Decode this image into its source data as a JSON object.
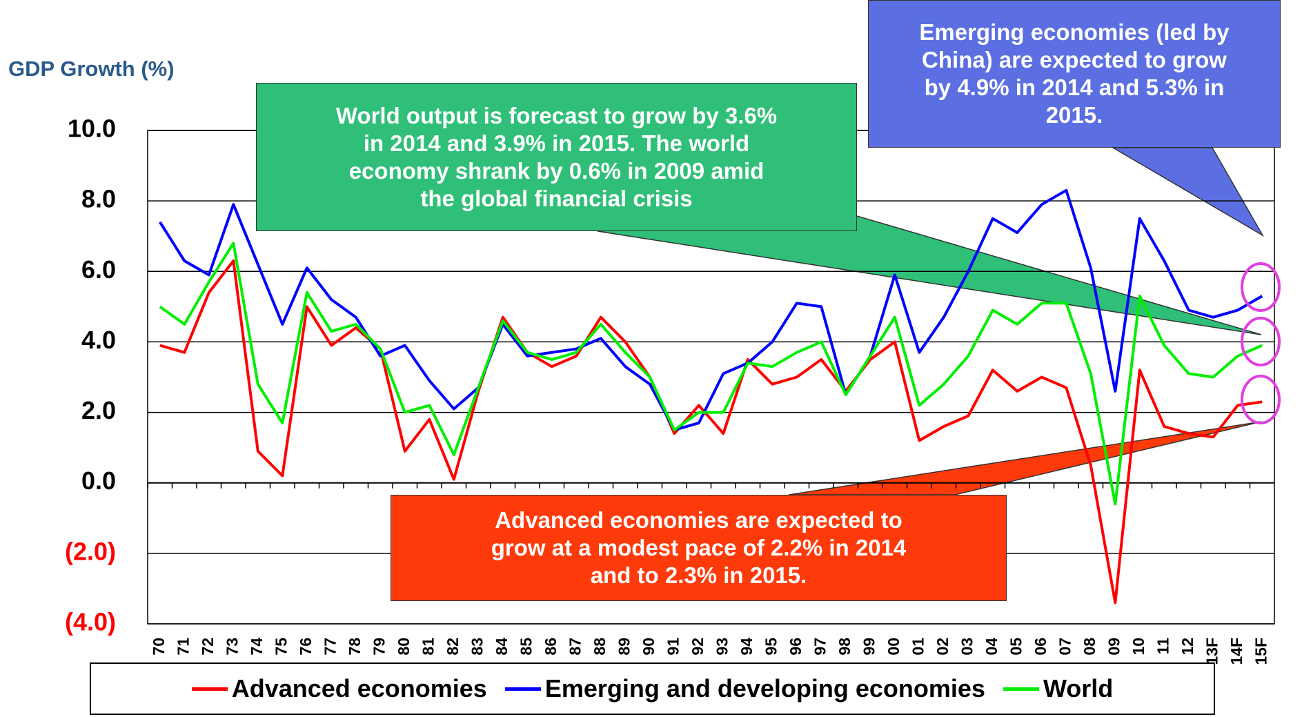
{
  "chart_data": {
    "type": "line",
    "y_axis_label": "GDP Growth (%)",
    "categories": [
      "70",
      "71",
      "72",
      "73",
      "74",
      "75",
      "76",
      "77",
      "78",
      "79",
      "80",
      "81",
      "82",
      "83",
      "84",
      "85",
      "86",
      "87",
      "88",
      "89",
      "90",
      "91",
      "92",
      "93",
      "94",
      "95",
      "96",
      "97",
      "98",
      "99",
      "00",
      "01",
      "02",
      "03",
      "04",
      "05",
      "06",
      "07",
      "08",
      "09",
      "10",
      "11",
      "12",
      "13F",
      "14F",
      "15F"
    ],
    "series": [
      {
        "name": "Advanced economies",
        "color": "#ff0000",
        "values": [
          3.9,
          3.7,
          5.4,
          6.3,
          0.9,
          0.2,
          5.0,
          3.9,
          4.4,
          3.8,
          0.9,
          1.8,
          0.1,
          2.6,
          4.7,
          3.7,
          3.3,
          3.6,
          4.7,
          4.0,
          3.0,
          1.4,
          2.2,
          1.4,
          3.5,
          2.8,
          3.0,
          3.5,
          2.6,
          3.5,
          4.0,
          1.2,
          1.6,
          1.9,
          3.2,
          2.6,
          3.0,
          2.7,
          0.5,
          -3.4,
          3.2,
          1.6,
          1.4,
          1.3,
          2.2,
          2.3
        ]
      },
      {
        "name": "Emerging and developing economies",
        "color": "#0000ff",
        "values": [
          7.4,
          6.3,
          5.9,
          7.9,
          6.2,
          4.5,
          6.1,
          5.2,
          4.7,
          3.6,
          3.9,
          2.9,
          2.1,
          2.7,
          4.5,
          3.6,
          3.7,
          3.8,
          4.1,
          3.3,
          2.8,
          1.5,
          1.7,
          3.1,
          3.4,
          4.0,
          5.1,
          5.0,
          2.5,
          3.6,
          5.9,
          3.7,
          4.7,
          6.0,
          7.5,
          7.1,
          7.9,
          8.3,
          6.1,
          2.6,
          7.5,
          6.3,
          4.9,
          4.7,
          4.9,
          5.3
        ]
      },
      {
        "name": "World",
        "color": "#00ee00",
        "values": [
          5.0,
          4.5,
          5.7,
          6.8,
          2.8,
          1.7,
          5.4,
          4.3,
          4.5,
          3.8,
          2.0,
          2.2,
          0.8,
          2.7,
          4.6,
          3.7,
          3.5,
          3.7,
          4.5,
          3.7,
          3.0,
          1.5,
          2.0,
          2.0,
          3.4,
          3.3,
          3.7,
          4.0,
          2.5,
          3.6,
          4.7,
          2.2,
          2.8,
          3.6,
          4.9,
          4.5,
          5.1,
          5.1,
          3.1,
          -0.6,
          5.3,
          3.9,
          3.1,
          3.0,
          3.6,
          3.9
        ]
      }
    ],
    "ylim": [
      -4,
      10
    ],
    "yticks": [
      {
        "value": -4,
        "label": "(4.0)"
      },
      {
        "value": -2,
        "label": "(2.0)"
      },
      {
        "value": 0,
        "label": "0.0"
      },
      {
        "value": 2,
        "label": "2.0"
      },
      {
        "value": 4,
        "label": "4.0"
      },
      {
        "value": 6,
        "label": "6.0"
      },
      {
        "value": 8,
        "label": "8.0"
      },
      {
        "value": 10,
        "label": "10.0"
      }
    ],
    "negative_tick_color": "#ff0000",
    "grid": true,
    "legend": "bottom",
    "annotations": [
      {
        "lines": [
          "World output is forecast to grow by 3.6%",
          "in 2014 and 3.9% in 2015.  The world",
          "economy shrank by 0.6% in 2009 amid",
          "the global financial crisis"
        ],
        "color": "#2fbf78"
      },
      {
        "lines": [
          "Emerging economies (led by",
          "China) are expected to grow",
          "by 4.9% in 2014 and 5.3% in",
          "2015."
        ],
        "color": "#5b6fe2"
      },
      {
        "lines": [
          "Advanced economies are expected to",
          "grow at a modest pace of 2.2% in 2014",
          "and to 2.3% in 2015."
        ],
        "color": "#ff3a0a"
      }
    ]
  }
}
